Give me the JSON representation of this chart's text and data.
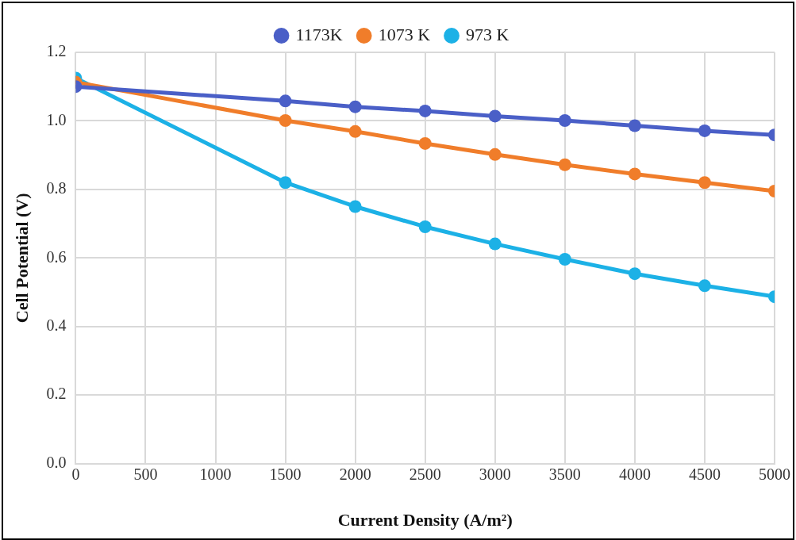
{
  "chart_data": {
    "type": "line",
    "xlabel": "Current Density (A/m²)",
    "ylabel": "Cell Potential (V)",
    "x": [
      0,
      1500,
      2000,
      2500,
      3000,
      3500,
      4000,
      4500,
      5000
    ],
    "series": [
      {
        "name": "1173K",
        "color": "#4a5fc7",
        "values": [
          1.1,
          1.058,
          1.041,
          1.029,
          1.014,
          1.001,
          0.986,
          0.971,
          0.959
        ]
      },
      {
        "name": "1073 K",
        "color": "#f07d2a",
        "values": [
          1.113,
          1.001,
          0.969,
          0.934,
          0.902,
          0.872,
          0.845,
          0.82,
          0.795
        ]
      },
      {
        "name": "973 K",
        "color": "#1cb1e6",
        "values": [
          1.125,
          0.82,
          0.75,
          0.691,
          0.641,
          0.596,
          0.554,
          0.519,
          0.487
        ]
      }
    ],
    "xlim": [
      0,
      5000
    ],
    "xticks": [
      0,
      500,
      1000,
      1500,
      2000,
      2500,
      3000,
      3500,
      4000,
      4500,
      5000
    ],
    "ylim": [
      0,
      1.2
    ],
    "yticks": [
      {
        "value": 0,
        "label": "0.0"
      },
      {
        "value": 0.2,
        "label": "0.2"
      },
      {
        "value": 0.4,
        "label": "0.4"
      },
      {
        "value": 0.6,
        "label": "0.6"
      },
      {
        "value": 0.8,
        "label": "0.8"
      },
      {
        "value": 1.0,
        "label": "1.0"
      },
      {
        "value": 1.2,
        "label": "1.2"
      }
    ],
    "grid": true,
    "legend": "top",
    "marker": "circle",
    "line_style": "solid"
  }
}
